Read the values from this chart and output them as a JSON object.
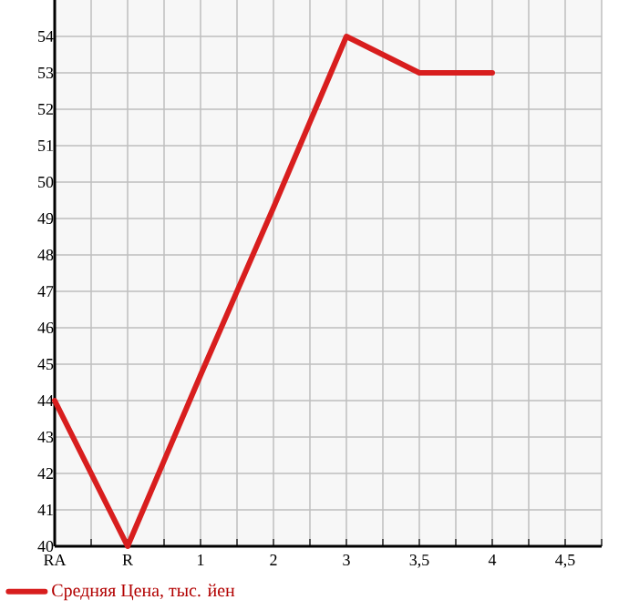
{
  "chart_data": {
    "type": "line",
    "categories": [
      "RA",
      "R",
      "1",
      "2",
      "3",
      "3,5",
      "4",
      "4,5"
    ],
    "series": [
      {
        "name": "Средняя Цена, тыс. йен",
        "color": "#d81e1e",
        "values": [
          44,
          40,
          44.7,
          49.3,
          54,
          53,
          53,
          null
        ]
      }
    ],
    "ylim": [
      40,
      55
    ],
    "yticks": [
      40,
      41,
      42,
      43,
      44,
      45,
      46,
      47,
      48,
      49,
      50,
      51,
      52,
      53,
      54
    ],
    "grid": true,
    "legend": "bottom left",
    "marker": "none",
    "line_style": "solid"
  }
}
